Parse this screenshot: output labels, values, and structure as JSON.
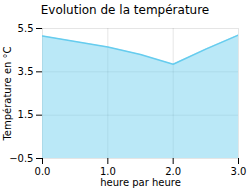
{
  "chart_data": {
    "type": "area",
    "title": "Evolution de la température",
    "xlabel": "heure par heure",
    "ylabel": "Température en °C",
    "x": [
      0,
      0.5,
      1.0,
      1.5,
      2.0,
      2.5,
      3.0
    ],
    "values": [
      5.15,
      4.9,
      4.65,
      4.3,
      3.85,
      4.55,
      5.2
    ],
    "color": "#66ccee",
    "xlim": [
      0,
      3
    ],
    "ylim": [
      -0.5,
      5.5
    ],
    "xticks": [
      0,
      1,
      2,
      3
    ],
    "yticks": [
      -0.5,
      1.5,
      3.5,
      5.5
    ],
    "grid": true
  }
}
